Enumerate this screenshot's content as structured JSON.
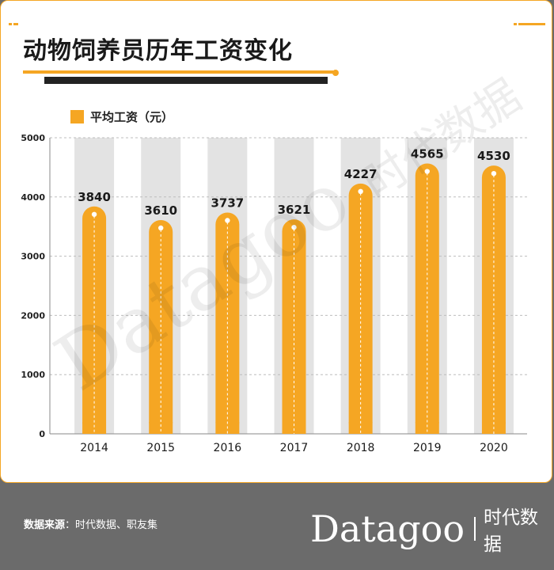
{
  "title": "动物饲养员历年工资变化",
  "legend_label": "平均工资（元）",
  "watermark_en": "Datagoo",
  "watermark_cn": "时代数据",
  "footer": {
    "source_label": "数据来源",
    "source_text": "：时代数据、职友集",
    "brand_en": "Datagoo",
    "brand_cn": "时代数据"
  },
  "colors": {
    "accent": "#f5a623",
    "bg_column": "#e3e3e3",
    "footer_bg": "#6b6b6b",
    "text_dark": "#1a1a1a"
  },
  "chart_data": {
    "type": "bar",
    "title": "动物饲养员历年工资变化",
    "series": [
      {
        "name": "平均工资（元）",
        "values": [
          3840,
          3610,
          3737,
          3621,
          4227,
          4565,
          4530
        ]
      }
    ],
    "categories": [
      "2014",
      "2015",
      "2016",
      "2017",
      "2018",
      "2019",
      "2020"
    ],
    "ylim": [
      0,
      5000
    ],
    "yticks": [
      0,
      1000,
      2000,
      3000,
      4000,
      5000
    ],
    "grid": true,
    "legend": "top-left",
    "xlabel": "",
    "ylabel": ""
  }
}
